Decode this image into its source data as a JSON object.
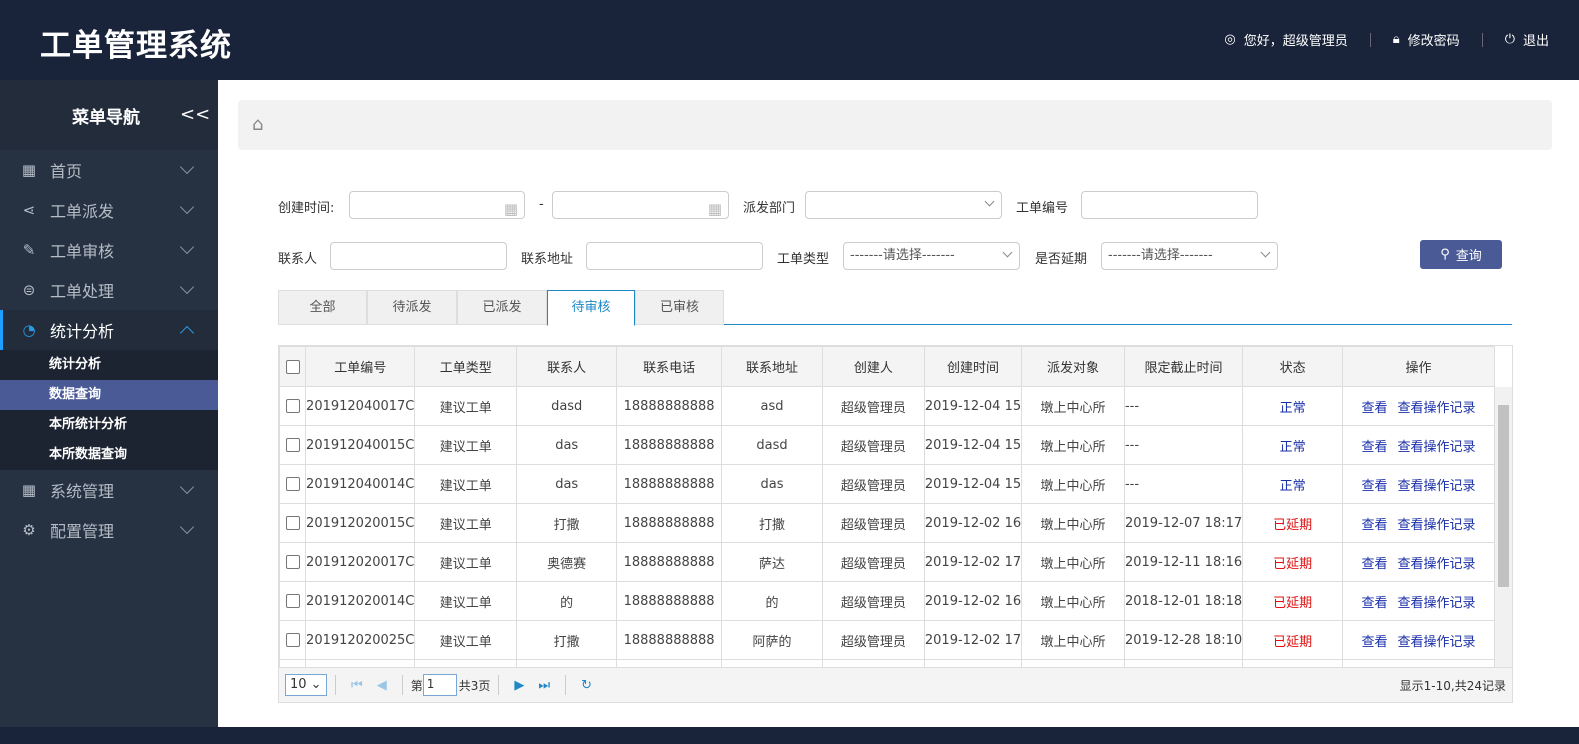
{
  "header": {
    "title": "工单管理系统",
    "greeting": "您好，超级管理员",
    "change_password": "修改密码",
    "logout": "退出"
  },
  "sidebar": {
    "title": "菜单导航",
    "collapse": "<<",
    "items": [
      {
        "label": "首页",
        "icon": "grid-icon"
      },
      {
        "label": "工单派发",
        "icon": "share-icon"
      },
      {
        "label": "工单审核",
        "icon": "edit-icon"
      },
      {
        "label": "工单处理",
        "icon": "database-icon"
      },
      {
        "label": "统计分析",
        "icon": "pie-icon",
        "expanded": true,
        "children": [
          "统计分析",
          "数据查询",
          "本所统计分析",
          "本所数据查询"
        ],
        "active_child": "数据查询"
      },
      {
        "label": "系统管理",
        "icon": "grid-icon"
      },
      {
        "label": "配置管理",
        "icon": "gear-icon"
      }
    ]
  },
  "filters": {
    "create_time": "创建时间:",
    "dash": "-",
    "dept": "派发部门",
    "order_no": "工单编号",
    "contact": "联系人",
    "address": "联系地址",
    "type": "工单类型",
    "type_value": "-------请选择-------",
    "delayed": "是否延期",
    "delayed_value": "-------请选择-------",
    "search": "查询"
  },
  "tabs": [
    "全部",
    "待派发",
    "已派发",
    "待审核",
    "已审核"
  ],
  "active_tab": "待审核",
  "table": {
    "columns": [
      "工单编号",
      "工单类型",
      "联系人",
      "联系电话",
      "联系地址",
      "创建人",
      "创建时间",
      "派发对象",
      "限定截止时间",
      "状态",
      "操作"
    ],
    "rows": [
      [
        "201912040017C",
        "建议工单",
        "dasd",
        "18888888888",
        "asd",
        "超级管理员",
        "2019-12-04 15",
        "墩上中心所",
        "---",
        "正常"
      ],
      [
        "201912040015C",
        "建议工单",
        "das",
        "18888888888",
        "dasd",
        "超级管理员",
        "2019-12-04 15",
        "墩上中心所",
        "---",
        "正常"
      ],
      [
        "201912040014C",
        "建议工单",
        "das",
        "18888888888",
        "das",
        "超级管理员",
        "2019-12-04 15",
        "墩上中心所",
        "---",
        "正常"
      ],
      [
        "201912020015C",
        "建议工单",
        "打撒",
        "18888888888",
        "打撒",
        "超级管理员",
        "2019-12-02 16",
        "墩上中心所",
        "2019-12-07 18:17",
        "已延期"
      ],
      [
        "201912020017C",
        "建议工单",
        "奥德赛",
        "18888888888",
        "萨达",
        "超级管理员",
        "2019-12-02 17",
        "墩上中心所",
        "2019-12-11 18:16",
        "已延期"
      ],
      [
        "201912020014C",
        "建议工单",
        "的",
        "18888888888",
        "的",
        "超级管理员",
        "2019-12-02 16",
        "墩上中心所",
        "2018-12-01 18:18",
        "已延期"
      ],
      [
        "201912020025C",
        "建议工单",
        "打撒",
        "18888888888",
        "阿萨的",
        "超级管理员",
        "2019-12-02 17",
        "墩上中心所",
        "2019-12-28 18:10",
        "已延期"
      ]
    ],
    "actions": [
      "查看",
      "查看操作记录"
    ]
  },
  "pager": {
    "page_size": "10",
    "page_prefix": "第",
    "page": "1",
    "page_suffix": "共3页",
    "summary": "显示1-10,共24记录"
  }
}
